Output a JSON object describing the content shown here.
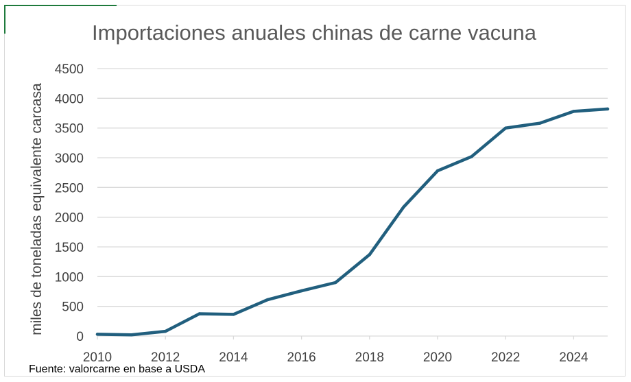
{
  "chart_data": {
    "type": "line",
    "title": "Importaciones anuales chinas de carne vacuna",
    "xlabel": "",
    "ylabel": "miles de toneladas equivalente carcasa",
    "source": "Fuente: valorcarne en base a USDA",
    "xlim": [
      2010,
      2025
    ],
    "ylim": [
      0,
      4500
    ],
    "x_ticks": [
      "2010",
      "2012",
      "2014",
      "2016",
      "2018",
      "2020",
      "2022",
      "2024"
    ],
    "y_ticks": [
      "0",
      "500",
      "1000",
      "1500",
      "2000",
      "2500",
      "3000",
      "3500",
      "4000",
      "4500"
    ],
    "grid": true,
    "legend": "none",
    "series": [
      {
        "color": "#215f7e",
        "x": [
          2010,
          2011,
          2012,
          2013,
          2014,
          2015,
          2016,
          2017,
          2018,
          2019,
          2020,
          2021,
          2022,
          2023,
          2024,
          2025
        ],
        "y": [
          30,
          20,
          80,
          375,
          365,
          610,
          760,
          900,
          1370,
          2170,
          2780,
          3020,
          3500,
          3580,
          3780,
          3820
        ]
      }
    ]
  }
}
